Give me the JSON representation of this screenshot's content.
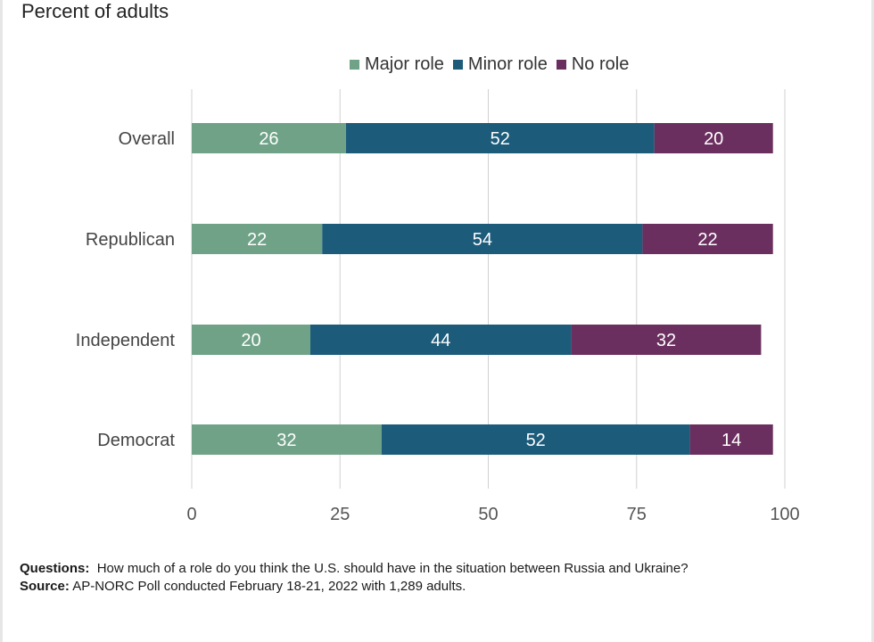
{
  "subtitle": "Percent of adults",
  "footnote": {
    "questions_label": "Questions:",
    "questions_text": "How much of a role do you think the U.S. should have in the situation between Russia and Ukraine?",
    "source_label": "Source:",
    "source_text": "AP-NORC Poll conducted February 18-21, 2022 with 1,289 adults."
  },
  "chart_data": {
    "type": "bar",
    "orientation": "horizontal",
    "stacked": true,
    "categories": [
      "Overall",
      "Republican",
      "Independent",
      "Democrat"
    ],
    "series": [
      {
        "name": "Major role",
        "color": "#6fa287",
        "values": [
          26,
          22,
          20,
          32
        ]
      },
      {
        "name": "Minor role",
        "color": "#1c5b7a",
        "values": [
          52,
          54,
          44,
          52
        ]
      },
      {
        "name": "No role",
        "color": "#6b2f5f",
        "values": [
          20,
          22,
          32,
          14
        ]
      }
    ],
    "xlim": [
      0,
      100
    ],
    "xticks": [
      0,
      25,
      50,
      75,
      100
    ],
    "grid": true,
    "legend_position": "top",
    "data_label_color": "#ffffff",
    "grid_color": "#d0d0d0",
    "axis_label_color": "#555555"
  }
}
